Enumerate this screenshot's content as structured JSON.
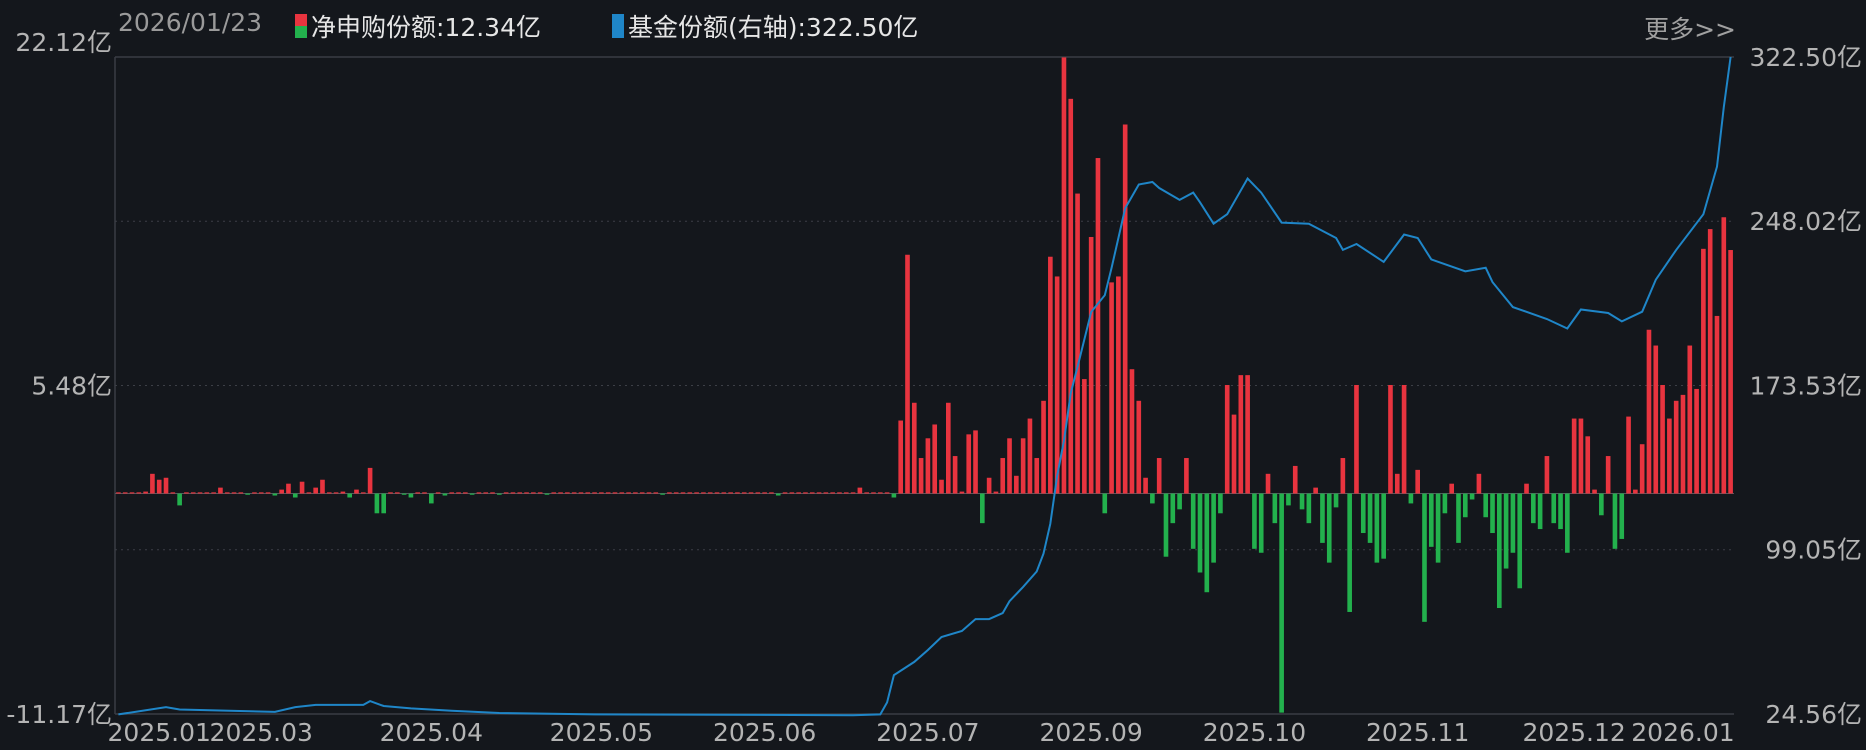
{
  "header": {
    "date": "2026/01/23",
    "legend_flow_label": "净申购份额:12.34亿",
    "legend_shares_label": "基金份额(右轴):322.50亿",
    "more_link": "更多>>"
  },
  "colors": {
    "background": "#14171c",
    "inflow": "#e8343f",
    "outflow": "#23b14d",
    "shares_line": "#1f86c8",
    "grid": "#3a3d44"
  },
  "chart_data": {
    "type": "bar+line",
    "left_axis": {
      "ticks": [
        "22.12亿",
        "5.48亿",
        "-11.17亿"
      ],
      "tick_values": [
        22.12,
        5.48,
        -11.17
      ],
      "ylim": [
        -11.17,
        22.12
      ]
    },
    "right_axis": {
      "ticks": [
        "322.50亿",
        "248.02亿",
        "173.53亿",
        "99.05亿",
        "24.56亿"
      ],
      "tick_values": [
        322.5,
        248.02,
        173.53,
        99.05,
        24.56
      ],
      "ylim": [
        24.56,
        322.5
      ]
    },
    "x_ticks": [
      {
        "label": "2025.01",
        "i": 6
      },
      {
        "label": "2025.03",
        "i": 21
      },
      {
        "label": "2025.04",
        "i": 46
      },
      {
        "label": "2025.05",
        "i": 71
      },
      {
        "label": "2025.06",
        "i": 95
      },
      {
        "label": "2025.07",
        "i": 119
      },
      {
        "label": "2025.09",
        "i": 143
      },
      {
        "label": "2025.10",
        "i": 167
      },
      {
        "label": "2025.11",
        "i": 191
      },
      {
        "label": "2025.12",
        "i": 214
      },
      {
        "label": "2026.01",
        "i": 230
      }
    ],
    "series": [
      {
        "name": "净申购份额",
        "unit": "亿",
        "axis": "left",
        "type": "bar",
        "values": [
          0.05,
          0.05,
          0.05,
          0.05,
          0.1,
          1.0,
          0.7,
          0.8,
          0.05,
          -0.6,
          0.05,
          0.05,
          0.05,
          0.05,
          0.05,
          0.3,
          0.05,
          0.05,
          0.05,
          -0.05,
          0.05,
          0.05,
          0.05,
          -0.1,
          0.2,
          0.5,
          -0.2,
          0.6,
          0.05,
          0.3,
          0.7,
          0.05,
          0.05,
          0.1,
          -0.2,
          0.2,
          0.05,
          1.3,
          -1.0,
          -1.0,
          0.05,
          0.05,
          -0.05,
          -0.2,
          0.05,
          0.05,
          -0.5,
          0.05,
          -0.1,
          0.05,
          0.05,
          0.05,
          -0.05,
          0.05,
          0.05,
          0.05,
          -0.05,
          0.05,
          0.05,
          0.05,
          0.05,
          0.05,
          0.05,
          -0.05,
          0.05,
          0.05,
          0.05,
          0.05,
          0.05,
          0.05,
          0.05,
          0.05,
          0.05,
          0.05,
          0.05,
          0.05,
          0.05,
          0.05,
          0.05,
          0.05,
          -0.05,
          0.05,
          0.05,
          0.05,
          0.05,
          0.05,
          0.05,
          0.05,
          0.05,
          0.05,
          0.05,
          0.05,
          0.05,
          0.05,
          0.05,
          0.05,
          0.05,
          -0.1,
          0.05,
          0.05,
          0.05,
          0.05,
          0.05,
          0.05,
          0.05,
          0.05,
          0.05,
          0.05,
          0.05,
          0.3,
          0.05,
          0.05,
          0.05,
          0.05,
          -0.2,
          3.7,
          12.1,
          4.6,
          1.8,
          2.8,
          3.5,
          0.7,
          4.6,
          1.9,
          0.1,
          3.0,
          3.2,
          -1.5,
          0.8,
          0.1,
          1.8,
          2.8,
          0.9,
          2.8,
          3.8,
          1.8,
          4.7,
          12.0,
          11.0,
          22.1,
          20.0,
          15.2,
          5.8,
          13.0,
          17.0,
          -1.0,
          10.7,
          11.0,
          18.7,
          6.3,
          4.7,
          0.8,
          -0.5,
          1.8,
          -3.2,
          -1.5,
          -0.8,
          1.8,
          -2.8,
          -4.0,
          -5.0,
          -3.5,
          -1.0,
          5.5,
          4.0,
          6.0,
          6.0,
          -2.8,
          -3.0,
          1.0,
          -1.5,
          -11.1,
          -0.6,
          1.4,
          -0.8,
          -1.5,
          0.3,
          -2.5,
          -3.5,
          -0.7,
          1.8,
          -6.0,
          5.5,
          -2.0,
          -2.5,
          -3.5,
          -3.3,
          5.5,
          1.0,
          5.5,
          -0.5,
          1.2,
          -6.5,
          -2.7,
          -3.5,
          -1.0,
          0.5,
          -2.5,
          -1.2,
          -0.3,
          1.0,
          -1.2,
          -2.0,
          -5.8,
          -3.8,
          -3.0,
          -4.8,
          0.5,
          -1.5,
          -1.8,
          1.9,
          -1.5,
          -1.8,
          -3.0,
          3.8,
          3.8,
          2.9,
          0.2,
          -1.1,
          1.9,
          -2.8,
          -2.3,
          3.9,
          0.2,
          2.5,
          8.3,
          7.5,
          5.5,
          3.8,
          4.7,
          5.0,
          7.5,
          5.3,
          12.4,
          13.4,
          9.0,
          14.0,
          12.34
        ]
      },
      {
        "name": "基金份额",
        "unit": "亿",
        "axis": "right",
        "type": "line",
        "points": [
          [
            0,
            24.4
          ],
          [
            7,
            27.7
          ],
          [
            9,
            26.6
          ],
          [
            23,
            25.5
          ],
          [
            26,
            27.7
          ],
          [
            29,
            28.7
          ],
          [
            36,
            28.7
          ],
          [
            37,
            30.4
          ],
          [
            39,
            28.2
          ],
          [
            43,
            27.1
          ],
          [
            49,
            26.0
          ],
          [
            56,
            25.0
          ],
          [
            70,
            24.4
          ],
          [
            108,
            24.0
          ],
          [
            112,
            24.4
          ],
          [
            113,
            29.8
          ],
          [
            114,
            42.2
          ],
          [
            117,
            48.2
          ],
          [
            119,
            53.6
          ],
          [
            121,
            59.5
          ],
          [
            124,
            62.2
          ],
          [
            126,
            67.6
          ],
          [
            128,
            67.6
          ],
          [
            130,
            70.3
          ],
          [
            131,
            75.7
          ],
          [
            133,
            82.2
          ],
          [
            135,
            89.2
          ],
          [
            136,
            97.3
          ],
          [
            137,
            110.8
          ],
          [
            138,
            132.4
          ],
          [
            139,
            148.6
          ],
          [
            140,
            170.2
          ],
          [
            141,
            182.1
          ],
          [
            142,
            194.5
          ],
          [
            143,
            206.9
          ],
          [
            145,
            214.5
          ],
          [
            146,
            226.9
          ],
          [
            147,
            240.4
          ],
          [
            148,
            253.9
          ],
          [
            149,
            259.3
          ],
          [
            150,
            264.7
          ],
          [
            152,
            265.8
          ],
          [
            153,
            263.1
          ],
          [
            156,
            257.7
          ],
          [
            158,
            261.0
          ],
          [
            159,
            256.6
          ],
          [
            161,
            246.9
          ],
          [
            163,
            251.2
          ],
          [
            166,
            267.4
          ],
          [
            168,
            261.0
          ],
          [
            171,
            247.4
          ],
          [
            175,
            246.9
          ],
          [
            179,
            240.4
          ],
          [
            180,
            235.0
          ],
          [
            182,
            237.7
          ],
          [
            186,
            229.6
          ],
          [
            189,
            242.0
          ],
          [
            191,
            240.4
          ],
          [
            193,
            230.7
          ],
          [
            198,
            225.3
          ],
          [
            201,
            226.9
          ],
          [
            202,
            220.4
          ],
          [
            205,
            209.1
          ],
          [
            210,
            203.7
          ],
          [
            213,
            199.4
          ],
          [
            215,
            208.0
          ],
          [
            219,
            206.4
          ],
          [
            221,
            202.6
          ],
          [
            224,
            207.0
          ],
          [
            226,
            221.5
          ],
          [
            229,
            235.0
          ],
          [
            233,
            251.2
          ],
          [
            235,
            272.8
          ],
          [
            236,
            299.8
          ],
          [
            237,
            322.5
          ]
        ]
      }
    ],
    "grid": true
  }
}
